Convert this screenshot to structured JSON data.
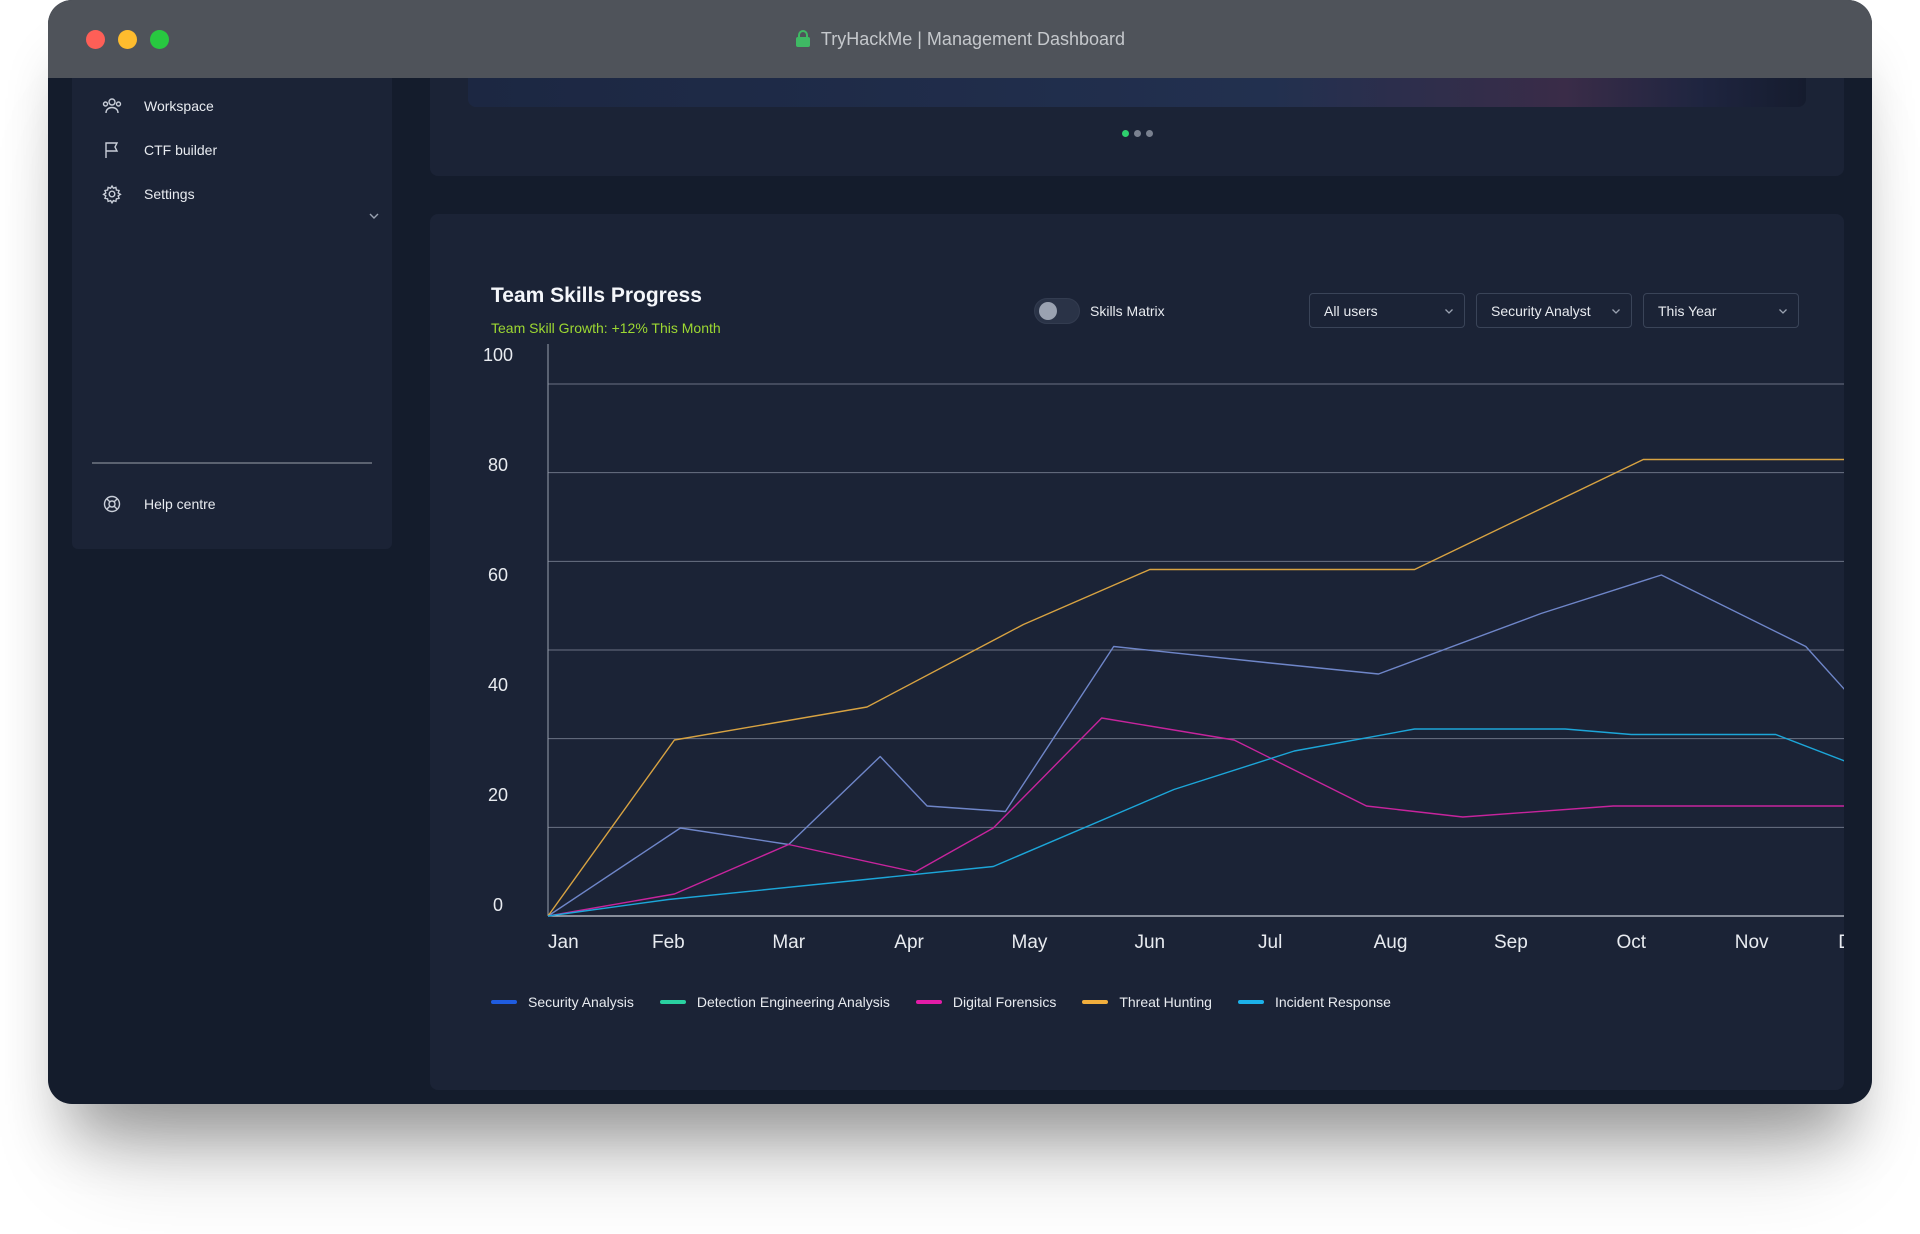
{
  "window": {
    "title": "TryHackMe | Management Dashboard"
  },
  "sidebar": {
    "items": [
      {
        "label": "Workspace",
        "icon": "users-icon"
      },
      {
        "label": "CTF builder",
        "icon": "flag-icon"
      },
      {
        "label": "Settings",
        "icon": "gear-icon"
      }
    ],
    "help": {
      "label": "Help centre",
      "icon": "lifebuoy-icon"
    }
  },
  "carousel": {
    "pages": 3,
    "active_page": 1
  },
  "panel": {
    "title": "Team Skills Progress",
    "subtitle_label": "Team Skill Growth:",
    "subtitle_value": "+12% This Month",
    "toggle_label": "Skills Matrix",
    "toggle_on": false,
    "filters": {
      "users": "All users",
      "role": "Security Analyst",
      "period": "This Year"
    }
  },
  "colors": {
    "accent_green": "#2ed06e",
    "growth_text": "#9dd832"
  },
  "chart_data": {
    "type": "line",
    "x": [
      "Jan",
      "Feb",
      "Mar",
      "Apr",
      "May",
      "Jun",
      "Jul",
      "Aug",
      "Sep",
      "Oct",
      "Nov",
      "Dec"
    ],
    "ylim": [
      0,
      100
    ],
    "yticks": [
      0,
      20,
      40,
      60,
      80,
      100
    ],
    "series": [
      {
        "name": "Security Analysis",
        "color": "#1f5ce0",
        "line_color": "#6f86c9",
        "points": [
          [
            0,
            0
          ],
          [
            1.1,
            16
          ],
          [
            2.0,
            13
          ],
          [
            2.76,
            29
          ],
          [
            3.15,
            20
          ],
          [
            3.8,
            19
          ],
          [
            4.7,
            49
          ],
          [
            6.0,
            46
          ],
          [
            6.9,
            44
          ],
          [
            8.25,
            55
          ],
          [
            9.25,
            62
          ],
          [
            10.45,
            49
          ],
          [
            11.15,
            32
          ]
        ]
      },
      {
        "name": "Detection Engineering Analysis",
        "color": "#2ad1a1",
        "line_color": null,
        "points": []
      },
      {
        "name": "Digital Forensics",
        "color": "#e31ca8",
        "line_color": "#c7249d",
        "points": [
          [
            0,
            0
          ],
          [
            1.05,
            4
          ],
          [
            2.0,
            13
          ],
          [
            3.05,
            8
          ],
          [
            3.7,
            16
          ],
          [
            4.6,
            36
          ],
          [
            5.7,
            32
          ],
          [
            6.8,
            20
          ],
          [
            7.6,
            18
          ],
          [
            8.85,
            20
          ],
          [
            10.45,
            20
          ],
          [
            11.15,
            20
          ]
        ]
      },
      {
        "name": "Threat Hunting",
        "color": "#f1ae3d",
        "line_color": "#d8a342",
        "points": [
          [
            0,
            0
          ],
          [
            1.05,
            32
          ],
          [
            2.65,
            38
          ],
          [
            3.95,
            53
          ],
          [
            5.0,
            63
          ],
          [
            7.2,
            63
          ],
          [
            9.1,
            83
          ],
          [
            9.9,
            83
          ],
          [
            10.45,
            83
          ],
          [
            11.15,
            83
          ]
        ]
      },
      {
        "name": "Incident Response",
        "color": "#1cb2ea",
        "line_color": "#1ca6d9",
        "points": [
          [
            0,
            0
          ],
          [
            1.0,
            3
          ],
          [
            3.7,
            9
          ],
          [
            5.2,
            23
          ],
          [
            6.2,
            30
          ],
          [
            7.2,
            34
          ],
          [
            8.45,
            34
          ],
          [
            9.0,
            33
          ],
          [
            10.2,
            33
          ],
          [
            11.15,
            25
          ]
        ]
      }
    ]
  }
}
